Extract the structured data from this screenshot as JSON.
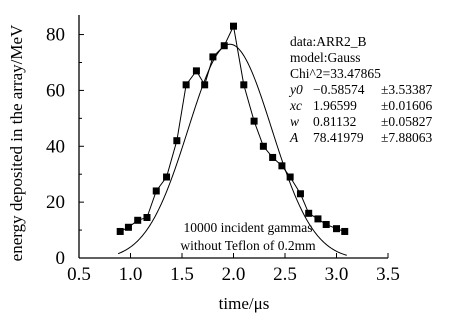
{
  "chart_data": {
    "type": "scatter",
    "xlabel": "time/μs",
    "ylabel": "energy deposited in the array/MeV",
    "xlim": [
      0.5,
      3.5
    ],
    "ylim": [
      0,
      87
    ],
    "xticks": [
      0.5,
      1.0,
      1.5,
      2.0,
      2.5,
      3.0,
      3.5
    ],
    "xtick_labels": [
      "0.5",
      "1.0",
      "1.5",
      "2.0",
      "2.5",
      "3.0",
      "3.5"
    ],
    "yticks": [
      0,
      20,
      40,
      60,
      80
    ],
    "ytick_labels": [
      "0",
      "20",
      "40",
      "60",
      "80"
    ],
    "grid": false,
    "series": [
      {
        "kind": "points-connected",
        "marker": "square",
        "x": [
          0.9,
          0.98,
          1.07,
          1.16,
          1.25,
          1.35,
          1.45,
          1.54,
          1.64,
          1.72,
          1.8,
          1.91,
          2.0,
          2.1,
          2.2,
          2.29,
          2.38,
          2.47,
          2.55,
          2.65,
          2.73,
          2.82,
          2.9,
          3.0,
          3.08
        ],
        "y": [
          9.5,
          11,
          13.5,
          14.5,
          24,
          29,
          42,
          62,
          67,
          62,
          72,
          76,
          83,
          62,
          49,
          40,
          36,
          33,
          29,
          23,
          16,
          14,
          12,
          10.5,
          9.5
        ]
      },
      {
        "kind": "fit-curve",
        "model": "Gauss",
        "params": {
          "y0": -0.58574,
          "xc": 1.96599,
          "w": 0.81132,
          "A": 78.41979
        }
      }
    ],
    "annotations": {
      "fit_box": {
        "data": "data:ARR2_B",
        "model": "model:Gauss",
        "chi": "Chi^2=33.47865",
        "rows": [
          {
            "name": "y0",
            "value": "−0.58574",
            "err": "±3.53387"
          },
          {
            "name": "xc",
            "value": "1.96599",
            "err": "±0.01606"
          },
          {
            "name": "w",
            "value": "0.81132",
            "err": "±0.05827"
          },
          {
            "name": "A",
            "value": "78.41979",
            "err": "±7.88063"
          }
        ]
      },
      "note_line1": "10000 incident gammas",
      "note_line2": "without Teflon of 0.2mm"
    }
  }
}
